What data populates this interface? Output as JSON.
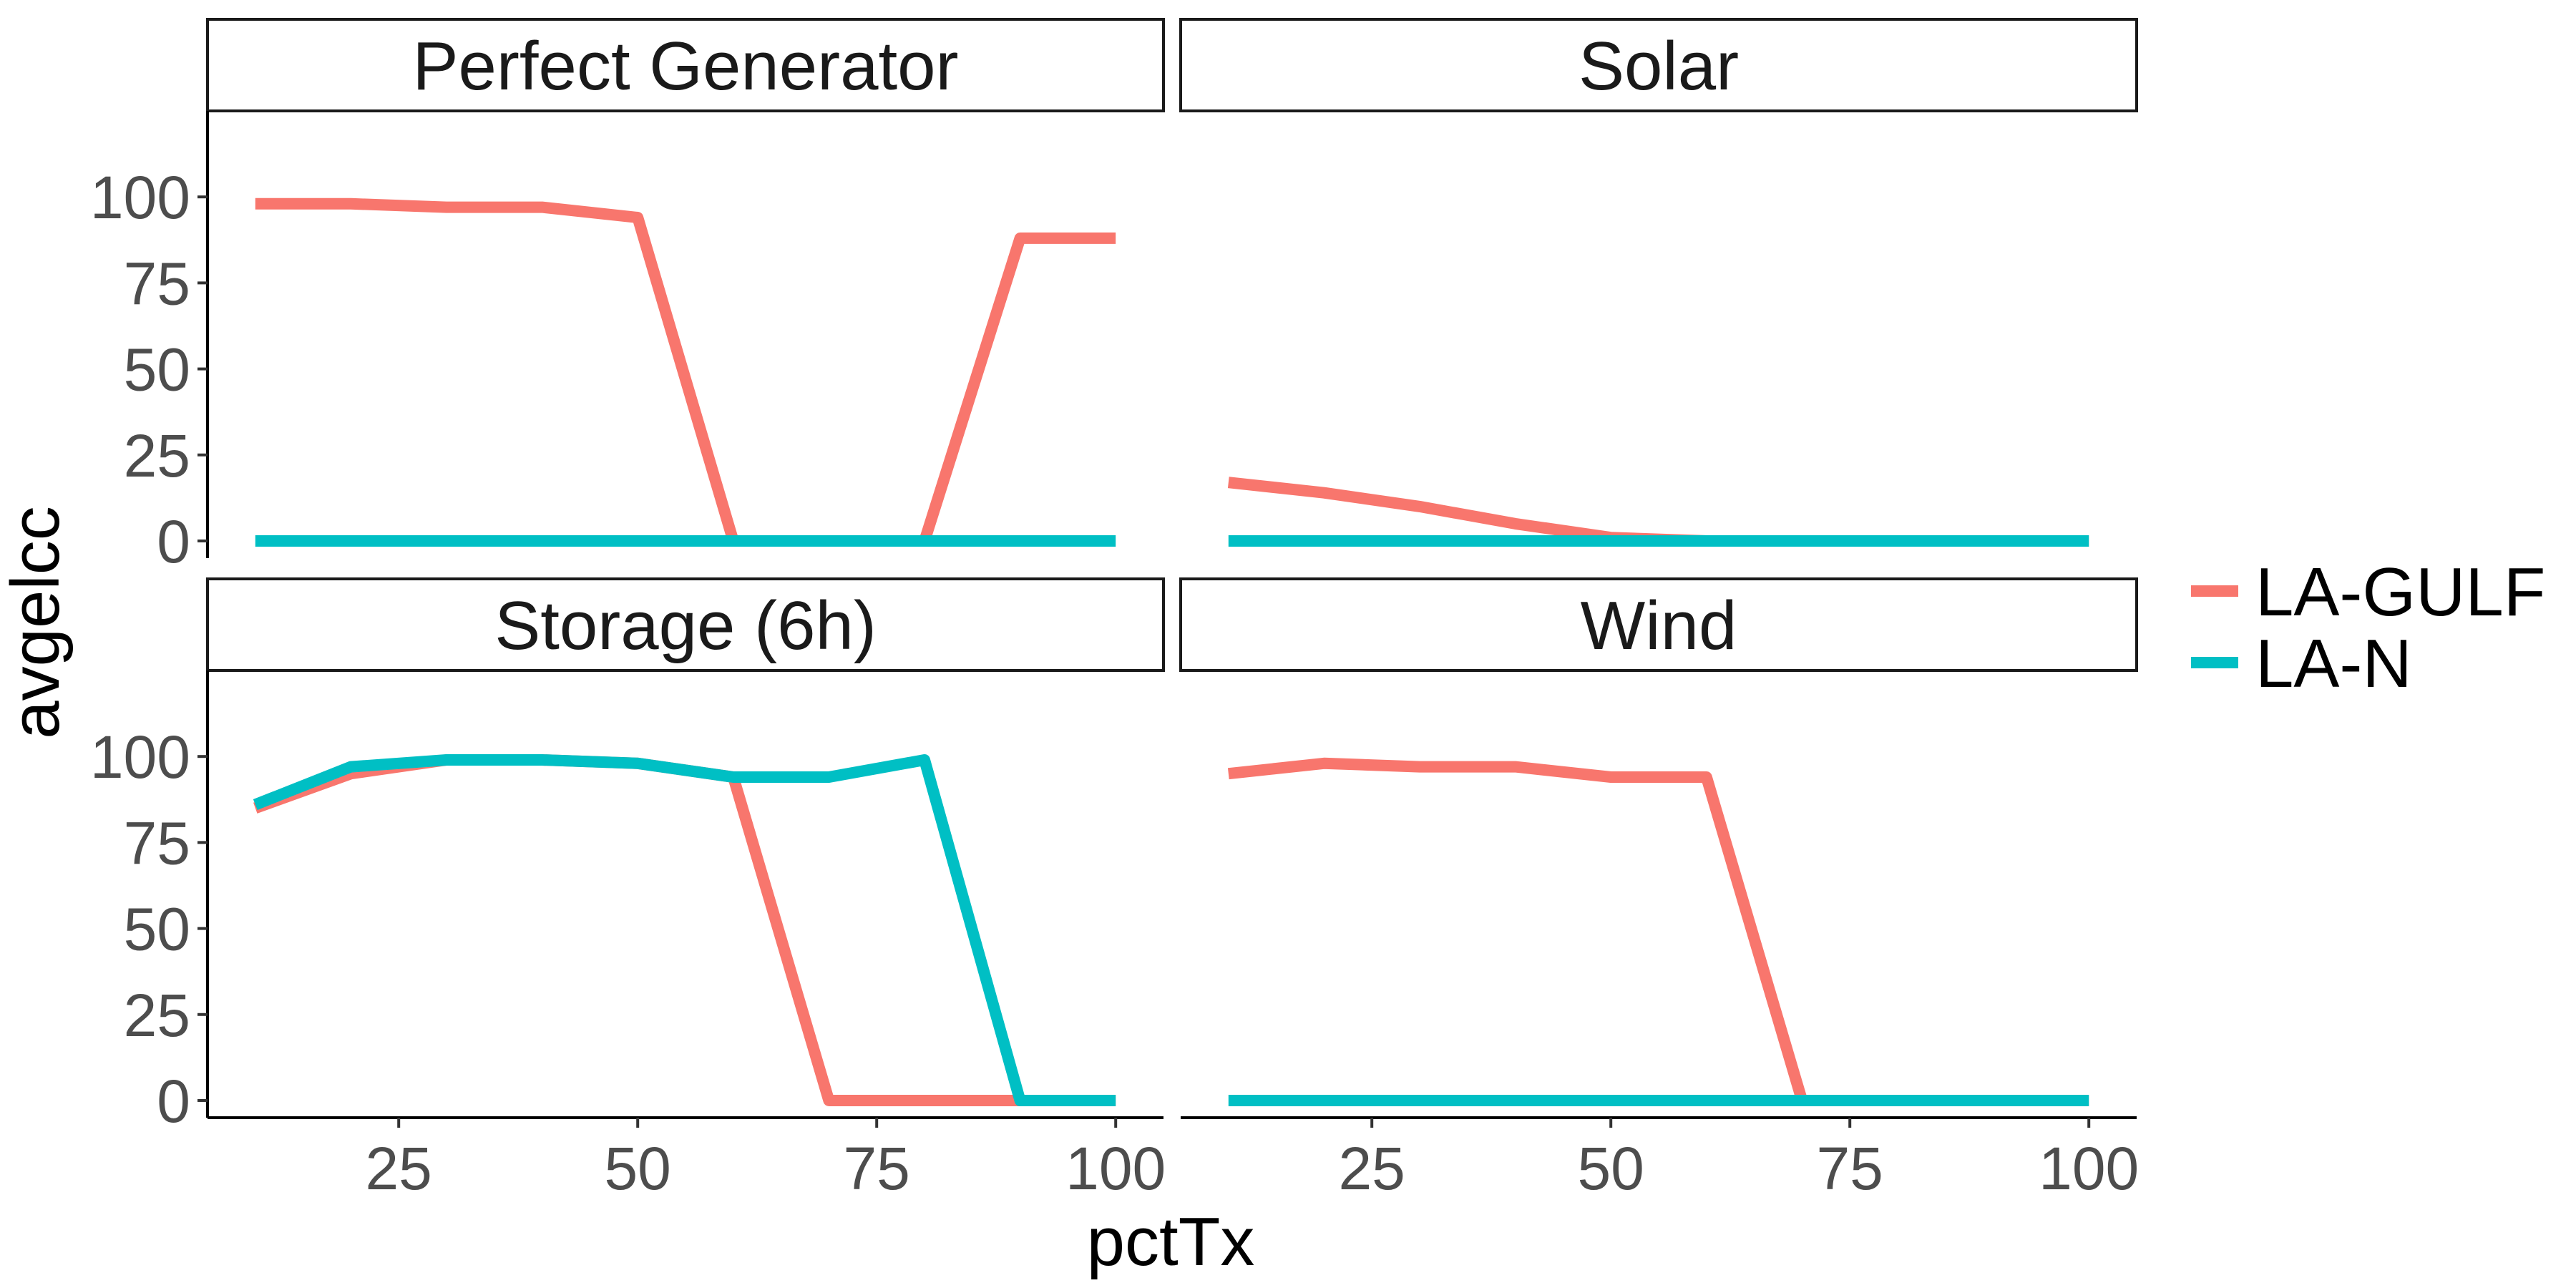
{
  "chart_data": {
    "type": "line",
    "facets": [
      {
        "title": "Perfect Generator"
      },
      {
        "title": "Solar"
      },
      {
        "title": "Storage (6h)"
      },
      {
        "title": "Wind"
      }
    ],
    "x": [
      10,
      20,
      30,
      40,
      50,
      60,
      70,
      80,
      90,
      100
    ],
    "xlabel": "pctTx",
    "ylabel": "avgelcc",
    "xlim": [
      5,
      105
    ],
    "ylim": [
      -5,
      125
    ],
    "xticks": [
      25,
      50,
      75,
      100
    ],
    "yticks": [
      0,
      25,
      50,
      75,
      100
    ],
    "xtick_labels": [
      "25",
      "50",
      "75",
      "100"
    ],
    "ytick_labels": [
      "0",
      "25",
      "50",
      "75",
      "100"
    ],
    "legend_position": "right",
    "series": [
      {
        "name": "LA-GULF",
        "color": "#F8766D",
        "values_by_facet": [
          [
            98,
            98,
            97,
            97,
            94,
            0,
            0,
            0,
            88,
            88
          ],
          [
            17,
            14,
            10,
            5,
            1,
            0,
            0,
            0,
            0,
            0
          ],
          [
            85,
            95,
            99,
            99,
            98,
            94,
            0,
            0,
            0,
            0
          ],
          [
            95,
            98,
            97,
            97,
            94,
            94,
            0,
            0,
            0,
            0
          ]
        ]
      },
      {
        "name": "LA-N",
        "color": "#00BFC4",
        "values_by_facet": [
          [
            0,
            0,
            0,
            0,
            0,
            0,
            0,
            0,
            0,
            0
          ],
          [
            0,
            0,
            0,
            0,
            0,
            0,
            0,
            0,
            0,
            0
          ],
          [
            86,
            97,
            99,
            99,
            98,
            94,
            94,
            99,
            0,
            0
          ],
          [
            0,
            0,
            0,
            0,
            0,
            0,
            0,
            0,
            0,
            0
          ]
        ]
      }
    ]
  }
}
